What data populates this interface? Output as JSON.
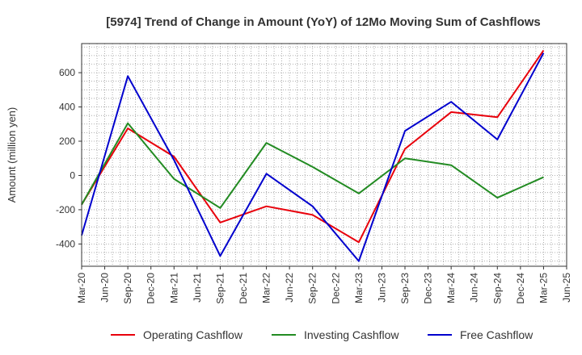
{
  "chart_data": {
    "type": "line",
    "title": "[5974]  Trend of Change in Amount (YoY) of 12Mo Moving Sum of Cashflows",
    "xlabel": "",
    "ylabel": "Amount (million yen)",
    "ylim": [
      -530,
      770
    ],
    "yticks": [
      -400,
      -200,
      0,
      200,
      400,
      600
    ],
    "grid": true,
    "legend_position": "bottom",
    "categories": [
      "Mar-20",
      "Jun-20",
      "Sep-20",
      "Dec-20",
      "Mar-21",
      "Jun-21",
      "Sep-21",
      "Dec-21",
      "Mar-22",
      "Jun-22",
      "Sep-22",
      "Dec-22",
      "Mar-23",
      "Jun-23",
      "Sep-23",
      "Dec-23",
      "Mar-24",
      "Jun-24",
      "Sep-24",
      "Dec-24",
      "Mar-25",
      "Jun-25"
    ],
    "series": [
      {
        "name": "Operating Cashflow",
        "color": "#e8000b",
        "points": [
          [
            "Mar-20",
            -170
          ],
          [
            "Sep-20",
            275
          ],
          [
            "Mar-21",
            110
          ],
          [
            "Sep-21",
            -275
          ],
          [
            "Mar-22",
            -180
          ],
          [
            "Sep-22",
            -230
          ],
          [
            "Mar-23",
            -390
          ],
          [
            "Sep-23",
            155
          ],
          [
            "Mar-24",
            370
          ],
          [
            "Sep-24",
            340
          ],
          [
            "Mar-25",
            730
          ]
        ]
      },
      {
        "name": "Investing Cashflow",
        "color": "#228b22",
        "points": [
          [
            "Mar-20",
            -170
          ],
          [
            "Sep-20",
            305
          ],
          [
            "Mar-21",
            -20
          ],
          [
            "Sep-21",
            -190
          ],
          [
            "Mar-22",
            190
          ],
          [
            "Sep-22",
            50
          ],
          [
            "Mar-23",
            -105
          ],
          [
            "Sep-23",
            100
          ],
          [
            "Mar-24",
            60
          ],
          [
            "Sep-24",
            -130
          ],
          [
            "Mar-25",
            -10
          ]
        ]
      },
      {
        "name": "Free Cashflow",
        "color": "#0000cd",
        "points": [
          [
            "Mar-20",
            -350
          ],
          [
            "Sep-20",
            580
          ],
          [
            "Mar-21",
            90
          ],
          [
            "Sep-21",
            -470
          ],
          [
            "Mar-22",
            10
          ],
          [
            "Sep-22",
            -180
          ],
          [
            "Mar-23",
            -500
          ],
          [
            "Sep-23",
            260
          ],
          [
            "Mar-24",
            430
          ],
          [
            "Sep-24",
            210
          ],
          [
            "Mar-25",
            715
          ]
        ]
      }
    ]
  }
}
